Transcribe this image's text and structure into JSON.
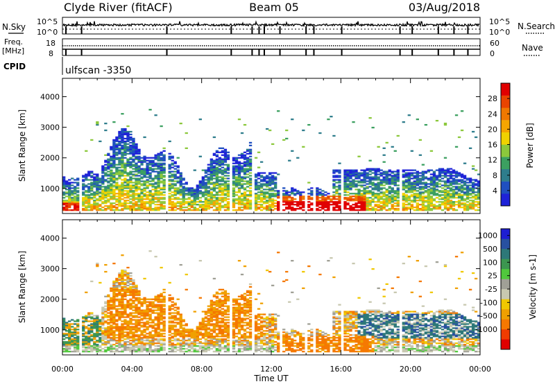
{
  "header": {
    "station": "Clyde River (fitACF)",
    "beam": "Beam 05",
    "date": "03/Aug/2018"
  },
  "aux_panels": {
    "nsky_label": "N.Sky",
    "nsearch_label": "N.Search",
    "freq_label_line1": "Freq.",
    "freq_label_line2": "[MHz]",
    "nave_label": "Nave",
    "cpid_label": "CPID",
    "cpid_value": "ulfscan -3350",
    "nsky_ticks": [
      "10^5",
      "10^0"
    ],
    "nsearch_ticks": [
      "10^5",
      "10^0"
    ],
    "freq_ticks": [
      "18",
      "8"
    ],
    "nave_ticks": [
      "60",
      "0"
    ]
  },
  "x_axis": {
    "label": "Time UT",
    "ticks": [
      "00:00",
      "04:00",
      "08:00",
      "12:00",
      "16:00",
      "20:00",
      "00:00"
    ]
  },
  "colors": {
    "power": [
      "#1e22d8",
      "#1f4fc0",
      "#2e7d8c",
      "#3ca060",
      "#8cc83c",
      "#f0d200",
      "#f5a500",
      "#f07800",
      "#e94400",
      "#e00000"
    ],
    "velocity": [
      "#e00000",
      "#f03c00",
      "#f57800",
      "#f0a000",
      "#f0c800",
      "#c8c8b0",
      "#a0a096",
      "#50c83c",
      "#3c9650",
      "#2d7878",
      "#2850a0",
      "#1e1ed2"
    ]
  },
  "chart_data": [
    {
      "type": "heatmap",
      "name_id": "power",
      "title": "",
      "xlabel": "",
      "ylabel": "Slant Range [km]",
      "x_range_hours": [
        0,
        24
      ],
      "ylim": [
        180,
        4600
      ],
      "y_ticks": [
        "1000",
        "2000",
        "3000",
        "4000"
      ],
      "colorbar": {
        "label": "Power [dB]",
        "range": [
          0,
          32
        ],
        "ticks": [
          "4",
          "8",
          "12",
          "16",
          "20",
          "24",
          "28"
        ]
      }
    },
    {
      "type": "heatmap",
      "name_id": "velocity",
      "title": "",
      "xlabel": "Time UT",
      "ylabel": "Slant Range [km]",
      "x_range_hours": [
        0,
        24
      ],
      "ylim": [
        180,
        4600
      ],
      "y_ticks": [
        "1000",
        "2000",
        "3000",
        "4000"
      ],
      "colorbar": {
        "label": "Velocity [m s-1]",
        "ticks": [
          "-1000",
          "-500",
          "-100",
          "-25",
          "25",
          "100",
          "500",
          "1000"
        ]
      }
    }
  ]
}
